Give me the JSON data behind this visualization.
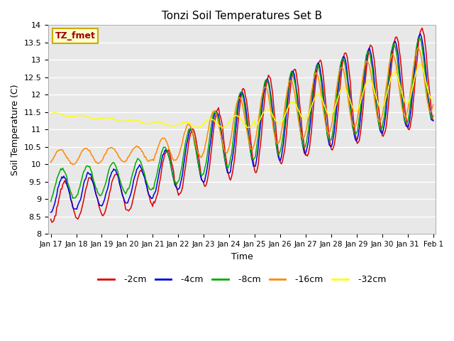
{
  "title": "Tonzi Soil Temperatures Set B",
  "xlabel": "Time",
  "ylabel": "Soil Temperature (C)",
  "ylim": [
    8.0,
    14.0
  ],
  "yticks": [
    8.0,
    8.5,
    9.0,
    9.5,
    10.0,
    10.5,
    11.0,
    11.5,
    12.0,
    12.5,
    13.0,
    13.5,
    14.0
  ],
  "plot_bg": "#e8e8e8",
  "fig_bg": "#ffffff",
  "grid_color": "#ffffff",
  "legend_label": "TZ_fmet",
  "legend_bg": "#ffffcc",
  "legend_border": "#ccaa00",
  "series_colors": {
    "-2cm": "#dd0000",
    "-4cm": "#0000dd",
    "-8cm": "#00aa00",
    "-16cm": "#ff8800",
    "-32cm": "#ffff00"
  },
  "series_order": [
    "-2cm",
    "-4cm",
    "-8cm",
    "-16cm",
    "-32cm"
  ],
  "tick_labels": [
    "Jan 17",
    "Jan 18",
    "Jan 19",
    "Jan 20",
    "Jan 21",
    "Jan 22",
    "Jan 23",
    "Jan 24",
    "Jan 25",
    "Jan 26",
    "Jan 27",
    "Jan 28",
    "Jan 29",
    "Jan 30",
    "Jan 31",
    "Feb 1"
  ],
  "tick_positions": [
    0,
    1,
    2,
    3,
    4,
    5,
    6,
    7,
    8,
    9,
    10,
    11,
    12,
    13,
    14,
    15
  ]
}
